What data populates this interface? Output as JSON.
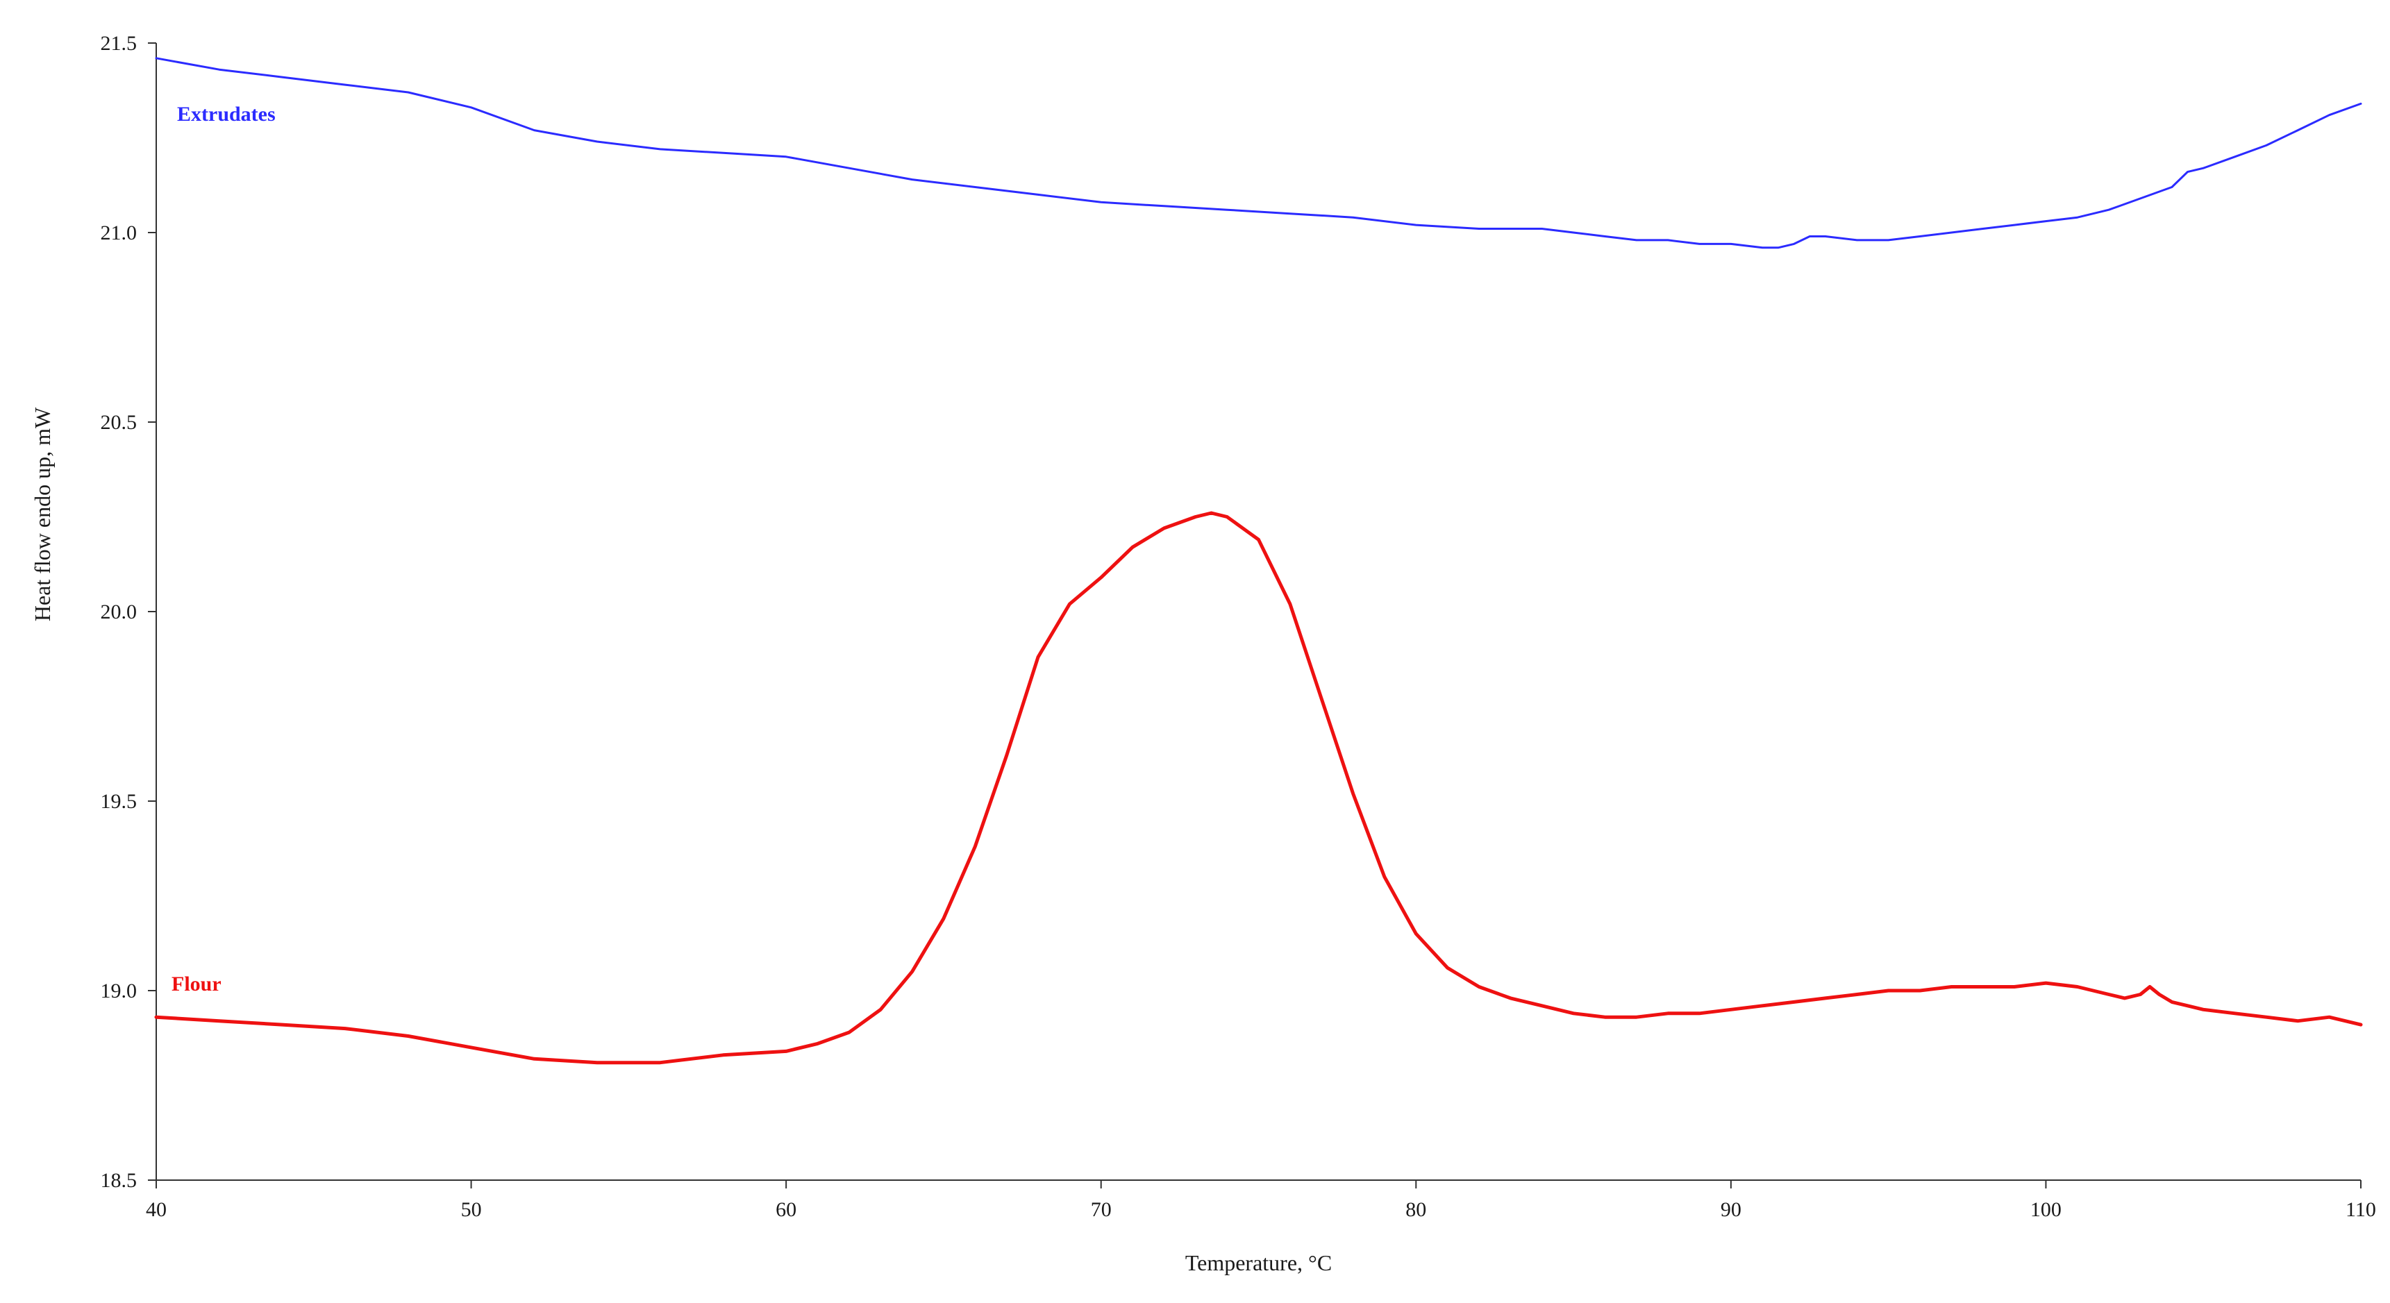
{
  "chart_data": {
    "type": "line",
    "xlabel": "Temperature, °C",
    "ylabel": "Heat flow endo up, mW",
    "xlim": [
      40,
      110
    ],
    "ylim": [
      18.5,
      21.5
    ],
    "x_ticks": [
      40,
      50,
      60,
      70,
      80,
      90,
      100,
      110
    ],
    "x_tick_labels": [
      "40",
      "50",
      "60",
      "70",
      "80",
      "90",
      "100",
      "110"
    ],
    "y_ticks": [
      18.5,
      19.0,
      19.5,
      20.0,
      20.5,
      21.0,
      21.5
    ],
    "y_tick_labels": [
      "18.5",
      "19.0",
      "19.5",
      "20.0",
      "20.5",
      "21.0",
      "21.5"
    ],
    "grid": false,
    "series": [
      {
        "name": "Extrudates",
        "color": "#2b2bff",
        "x": [
          40,
          42,
          44,
          46,
          48,
          50,
          52,
          54,
          56,
          58,
          60,
          62,
          64,
          66,
          68,
          70,
          72,
          74,
          76,
          78,
          80,
          82,
          84,
          85,
          86,
          87,
          88,
          89,
          90,
          91,
          91.5,
          92,
          92.5,
          93,
          94,
          95,
          96,
          97,
          98,
          99,
          100,
          101,
          102,
          103,
          104,
          104.5,
          105,
          106,
          107,
          108,
          109,
          110
        ],
        "y": [
          21.46,
          21.43,
          21.41,
          21.39,
          21.37,
          21.33,
          21.27,
          21.24,
          21.22,
          21.21,
          21.2,
          21.17,
          21.14,
          21.12,
          21.1,
          21.08,
          21.07,
          21.06,
          21.05,
          21.04,
          21.02,
          21.01,
          21.01,
          21.0,
          20.99,
          20.98,
          20.98,
          20.97,
          20.97,
          20.96,
          20.96,
          20.97,
          20.99,
          20.99,
          20.98,
          20.98,
          20.99,
          21.0,
          21.01,
          21.02,
          21.03,
          21.04,
          21.06,
          21.09,
          21.12,
          21.16,
          21.17,
          21.2,
          21.23,
          21.27,
          21.31,
          21.34
        ]
      },
      {
        "name": "Flour",
        "color": "#ee1111",
        "x": [
          40,
          42,
          44,
          46,
          48,
          50,
          52,
          54,
          56,
          58,
          60,
          61,
          62,
          63,
          64,
          65,
          66,
          67,
          68,
          69,
          70,
          71,
          72,
          73,
          73.5,
          74,
          75,
          76,
          77,
          78,
          79,
          80,
          81,
          82,
          83,
          84,
          85,
          86,
          87,
          88,
          89,
          90,
          91,
          92,
          93,
          94,
          95,
          96,
          97,
          98,
          99,
          100,
          101,
          102,
          102.5,
          103,
          103.3,
          103.6,
          104,
          104.5,
          105,
          106,
          107,
          108,
          109,
          110
        ],
        "y": [
          18.93,
          18.92,
          18.91,
          18.9,
          18.88,
          18.85,
          18.82,
          18.81,
          18.81,
          18.83,
          18.84,
          18.86,
          18.89,
          18.95,
          19.05,
          19.19,
          19.38,
          19.62,
          19.88,
          20.02,
          20.09,
          20.17,
          20.22,
          20.25,
          20.26,
          20.25,
          20.19,
          20.02,
          19.77,
          19.52,
          19.3,
          19.15,
          19.06,
          19.01,
          18.98,
          18.96,
          18.94,
          18.93,
          18.93,
          18.94,
          18.94,
          18.95,
          18.96,
          18.97,
          18.98,
          18.99,
          19.0,
          19.0,
          19.01,
          19.01,
          19.01,
          19.02,
          19.01,
          18.99,
          18.98,
          18.99,
          19.01,
          18.99,
          18.97,
          18.96,
          18.95,
          18.94,
          18.93,
          18.92,
          18.93,
          18.91
        ]
      }
    ]
  }
}
